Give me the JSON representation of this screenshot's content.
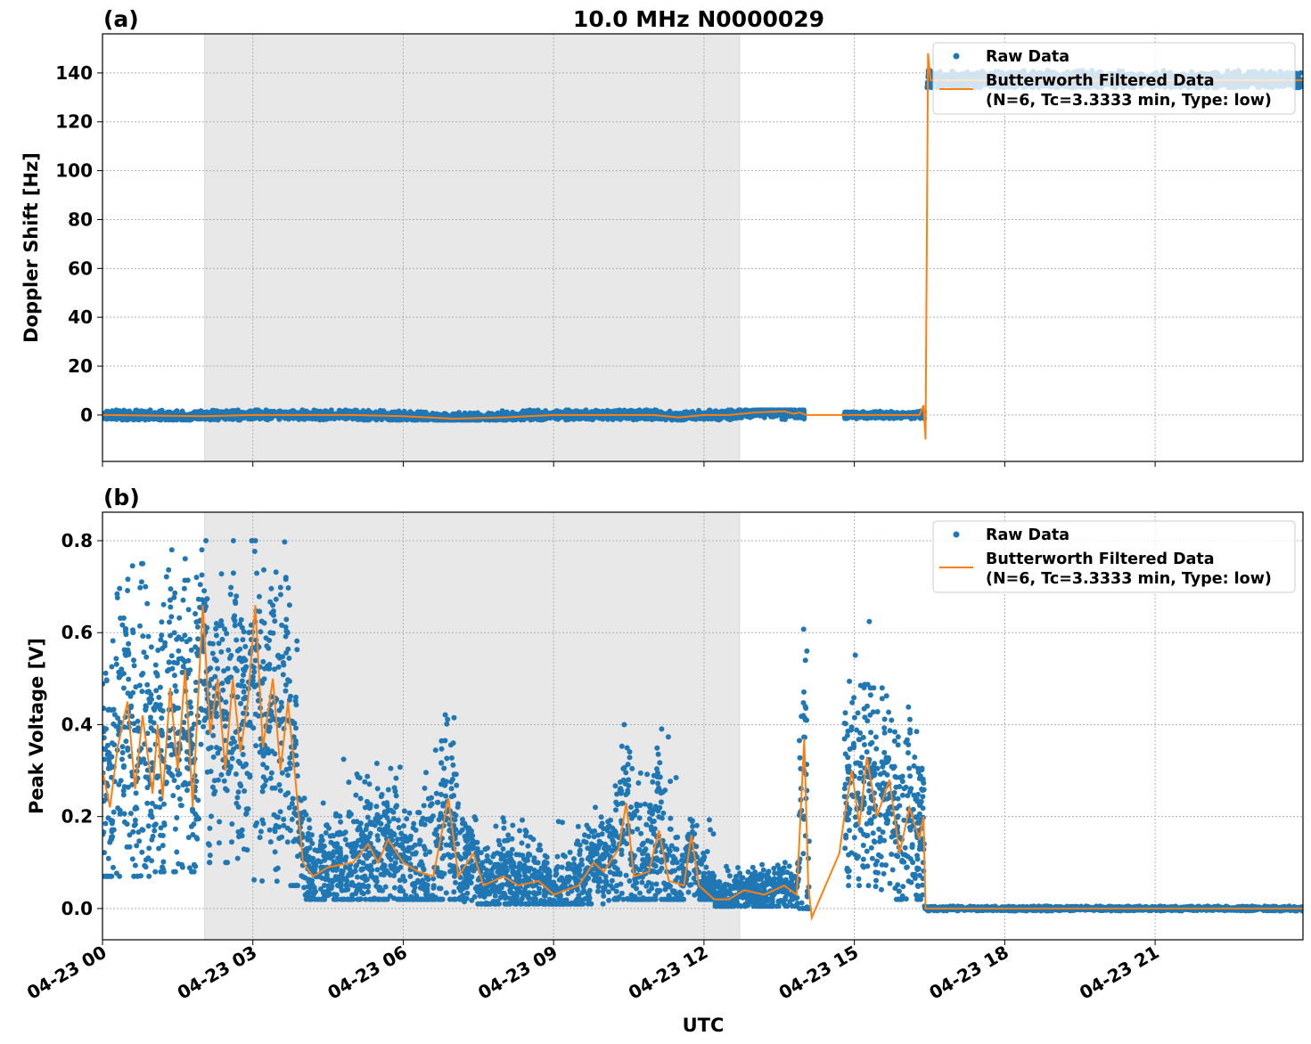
{
  "title": "10.0 MHz N0000029",
  "colors": {
    "raw": "#1f77b4",
    "filtered": "#ff7f0e",
    "shade": "#e8e8e8"
  },
  "chart_data": [
    {
      "panel_label": "(a)",
      "type": "scatter+line",
      "ylabel": "Doppler Shift [Hz]",
      "xlabel": "",
      "x_unit": "hours UTC on 04-23",
      "xlim": [
        0,
        23.95
      ],
      "ylim": [
        -19,
        156
      ],
      "yticks": [
        0,
        20,
        40,
        60,
        80,
        100,
        120,
        140
      ],
      "ytick_labels": [
        "0",
        "20",
        "40",
        "60",
        "80",
        "100",
        "120",
        "140"
      ],
      "xticks": [
        0,
        3,
        6,
        9,
        12,
        15,
        18,
        21
      ],
      "xtick_labels": [
        "04-23 00",
        "04-23 03",
        "04-23 06",
        "04-23 09",
        "04-23 12",
        "04-23 15",
        "04-23 18",
        "04-23 21"
      ],
      "grid": true,
      "shaded_span": [
        2.04,
        12.71
      ],
      "legend": {
        "placement": "upper right",
        "entries": [
          "Raw Data",
          "Butterworth Filtered Data",
          "(N=6, Tc=3.3333 min, Type: low)"
        ]
      },
      "raw_bands": [
        [
          0,
          14.0,
          -2,
          2
        ],
        [
          14.8,
          16.4,
          -1.5,
          1.5
        ],
        [
          16.45,
          23.95,
          134,
          141
        ]
      ],
      "filtered": [
        [
          0,
          0
        ],
        [
          2,
          -0.5
        ],
        [
          3,
          0
        ],
        [
          5,
          0
        ],
        [
          6,
          -0.5
        ],
        [
          7,
          -1.5
        ],
        [
          8,
          -1
        ],
        [
          9,
          0
        ],
        [
          11,
          0
        ],
        [
          11.5,
          -1
        ],
        [
          12,
          0
        ],
        [
          12.5,
          0
        ],
        [
          13,
          1
        ],
        [
          13.6,
          1.5
        ],
        [
          13.8,
          0.5
        ],
        [
          13.9,
          1
        ],
        [
          14.05,
          0
        ],
        [
          14.8,
          0
        ],
        [
          16.3,
          0
        ],
        [
          16.38,
          4
        ],
        [
          16.42,
          -10
        ],
        [
          16.47,
          148
        ],
        [
          16.52,
          137
        ],
        [
          17,
          137
        ],
        [
          20,
          137
        ],
        [
          23.95,
          137
        ]
      ]
    },
    {
      "panel_label": "(b)",
      "type": "scatter+line",
      "ylabel": "Peak Voltage [V]",
      "xlabel": "UTC",
      "x_unit": "hours UTC on 04-23",
      "xlim": [
        0,
        23.95
      ],
      "ylim": [
        -0.068,
        0.862
      ],
      "yticks": [
        0,
        0.2,
        0.4,
        0.6,
        0.8
      ],
      "ytick_labels": [
        "0.0",
        "0.2",
        "0.4",
        "0.6",
        "0.8"
      ],
      "xticks": [
        0,
        3,
        6,
        9,
        12,
        15,
        18,
        21
      ],
      "xtick_labels": [
        "04-23 00",
        "04-23 03",
        "04-23 06",
        "04-23 09",
        "04-23 12",
        "04-23 15",
        "04-23 18",
        "04-23 21"
      ],
      "grid": true,
      "shaded_span": [
        2.04,
        12.71
      ],
      "legend": {
        "placement": "upper right",
        "entries": [
          "Raw Data",
          "Butterworth Filtered Data",
          "(N=6, Tc=3.3333 min, Type: low)"
        ]
      },
      "raw_bands": [
        [
          0,
          1,
          0.07,
          0.75
        ],
        [
          1,
          2,
          0.08,
          0.78
        ],
        [
          2,
          3,
          0.1,
          0.8
        ],
        [
          3,
          3.9,
          0.05,
          0.8
        ],
        [
          3.9,
          4.8,
          0.02,
          0.24
        ],
        [
          4.8,
          6.5,
          0.02,
          0.33
        ],
        [
          6.5,
          7.2,
          0.02,
          0.45
        ],
        [
          7.2,
          9.5,
          0.01,
          0.2
        ],
        [
          9.5,
          10.2,
          0.01,
          0.22
        ],
        [
          10.2,
          10.8,
          0.02,
          0.4
        ],
        [
          10.8,
          11.5,
          0.02,
          0.4
        ],
        [
          11.5,
          12.2,
          0.02,
          0.2
        ],
        [
          12.2,
          13.9,
          0.005,
          0.1
        ],
        [
          13.9,
          14.1,
          0.0,
          0.76
        ],
        [
          14.8,
          15.3,
          0.05,
          0.63
        ],
        [
          15.3,
          16.4,
          0.02,
          0.48
        ],
        [
          16.4,
          23.95,
          -0.005,
          0.005
        ]
      ],
      "filtered": [
        [
          0,
          0.3
        ],
        [
          0.15,
          0.22
        ],
        [
          0.3,
          0.35
        ],
        [
          0.5,
          0.45
        ],
        [
          0.65,
          0.26
        ],
        [
          0.8,
          0.42
        ],
        [
          1.0,
          0.25
        ],
        [
          1.1,
          0.4
        ],
        [
          1.2,
          0.24
        ],
        [
          1.35,
          0.48
        ],
        [
          1.5,
          0.3
        ],
        [
          1.65,
          0.52
        ],
        [
          1.8,
          0.22
        ],
        [
          2.0,
          0.66
        ],
        [
          2.15,
          0.38
        ],
        [
          2.3,
          0.5
        ],
        [
          2.45,
          0.3
        ],
        [
          2.6,
          0.5
        ],
        [
          2.75,
          0.34
        ],
        [
          2.9,
          0.45
        ],
        [
          3.05,
          0.66
        ],
        [
          3.2,
          0.35
        ],
        [
          3.4,
          0.5
        ],
        [
          3.55,
          0.3
        ],
        [
          3.7,
          0.45
        ],
        [
          3.85,
          0.28
        ],
        [
          4.0,
          0.1
        ],
        [
          4.2,
          0.07
        ],
        [
          4.5,
          0.09
        ],
        [
          5.0,
          0.1
        ],
        [
          5.3,
          0.14
        ],
        [
          5.5,
          0.1
        ],
        [
          5.7,
          0.15
        ],
        [
          6.0,
          0.1
        ],
        [
          6.3,
          0.08
        ],
        [
          6.6,
          0.07
        ],
        [
          6.9,
          0.24
        ],
        [
          7.1,
          0.07
        ],
        [
          7.4,
          0.12
        ],
        [
          7.6,
          0.05
        ],
        [
          8.0,
          0.07
        ],
        [
          8.3,
          0.05
        ],
        [
          8.7,
          0.06
        ],
        [
          9.0,
          0.03
        ],
        [
          9.5,
          0.05
        ],
        [
          9.8,
          0.1
        ],
        [
          10.0,
          0.08
        ],
        [
          10.3,
          0.13
        ],
        [
          10.45,
          0.23
        ],
        [
          10.6,
          0.07
        ],
        [
          10.9,
          0.08
        ],
        [
          11.1,
          0.17
        ],
        [
          11.3,
          0.06
        ],
        [
          11.6,
          0.05
        ],
        [
          11.75,
          0.16
        ],
        [
          11.9,
          0.05
        ],
        [
          12.2,
          0.02
        ],
        [
          12.5,
          0.02
        ],
        [
          12.8,
          0.04
        ],
        [
          13.2,
          0.03
        ],
        [
          13.6,
          0.05
        ],
        [
          13.85,
          0.03
        ],
        [
          14.0,
          0.37
        ],
        [
          14.08,
          0.05
        ],
        [
          14.15,
          -0.02
        ],
        [
          14.7,
          0.12
        ],
        [
          14.8,
          0.2
        ],
        [
          14.95,
          0.3
        ],
        [
          15.1,
          0.18
        ],
        [
          15.25,
          0.33
        ],
        [
          15.45,
          0.2
        ],
        [
          15.7,
          0.28
        ],
        [
          15.9,
          0.12
        ],
        [
          16.1,
          0.22
        ],
        [
          16.3,
          0.15
        ],
        [
          16.38,
          0.2
        ],
        [
          16.42,
          0.0
        ],
        [
          23.95,
          0.0
        ]
      ]
    }
  ]
}
